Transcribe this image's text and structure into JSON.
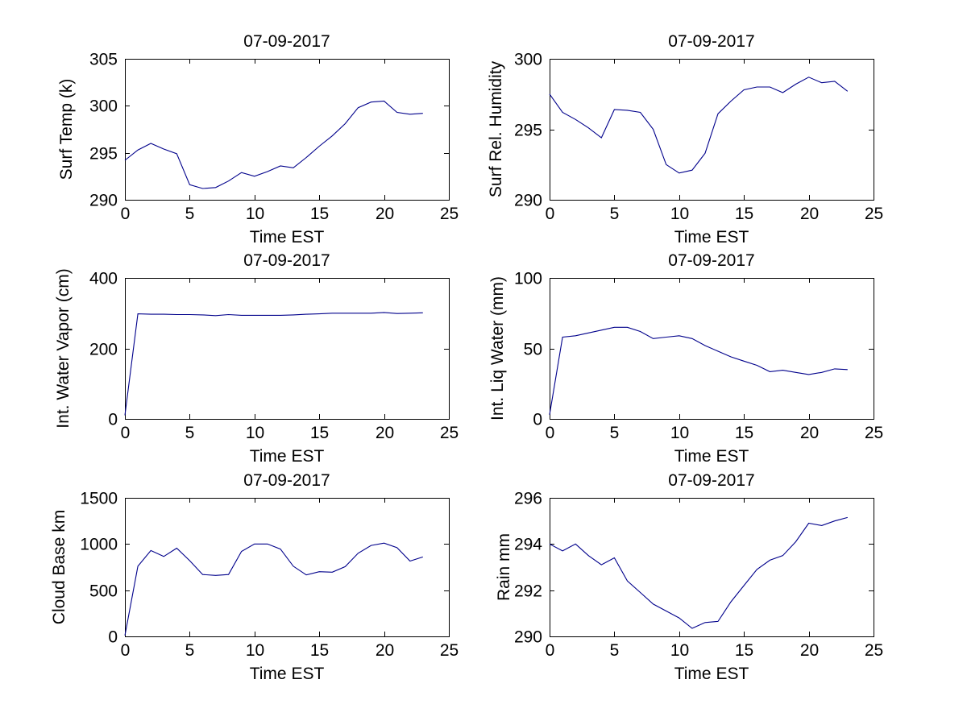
{
  "page": {
    "background": "#ffffff",
    "axis_color": "#000000",
    "line_color": "#00008B"
  },
  "chart_data": [
    {
      "type": "line",
      "title": "07-09-2017",
      "xlabel": "Time EST",
      "ylabel": "Surf Temp (k)",
      "xlim": [
        0,
        25
      ],
      "ylim": [
        290,
        305
      ],
      "xticks": [
        0,
        5,
        10,
        15,
        20,
        25
      ],
      "yticks": [
        290,
        295,
        300,
        305
      ],
      "grid": false,
      "legend": null,
      "line_color": "#00008B",
      "x": [
        0,
        1,
        2,
        3,
        4,
        5,
        6,
        7,
        8,
        9,
        10,
        11,
        12,
        13,
        14,
        15,
        16,
        17,
        18,
        19,
        20,
        21,
        22,
        23
      ],
      "y": [
        294.2,
        295.3,
        296.0,
        295.4,
        294.9,
        291.6,
        291.2,
        291.3,
        292.0,
        292.9,
        292.5,
        293.0,
        293.6,
        293.4,
        294.5,
        295.7,
        296.8,
        298.1,
        299.8,
        300.4,
        300.5,
        299.3,
        299.1,
        299.2
      ]
    },
    {
      "type": "line",
      "title": "07-09-2017",
      "xlabel": "Time EST",
      "ylabel": "Surf Rel. Humidity",
      "xlim": [
        0,
        25
      ],
      "ylim": [
        290,
        300
      ],
      "xticks": [
        0,
        5,
        10,
        15,
        20,
        25
      ],
      "yticks": [
        290,
        295,
        300
      ],
      "grid": false,
      "legend": null,
      "line_color": "#00008B",
      "x": [
        0,
        1,
        2,
        3,
        4,
        5,
        6,
        7,
        8,
        9,
        10,
        11,
        12,
        13,
        14,
        15,
        16,
        17,
        18,
        19,
        20,
        21,
        22,
        23
      ],
      "y": [
        297.5,
        296.2,
        295.7,
        295.1,
        294.4,
        296.4,
        296.35,
        296.2,
        295.0,
        292.5,
        291.9,
        292.1,
        293.3,
        296.1,
        297.0,
        297.8,
        298.0,
        298.0,
        297.6,
        298.2,
        298.7,
        298.3,
        298.4,
        297.7
      ]
    },
    {
      "type": "line",
      "title": "07-09-2017",
      "xlabel": "Time EST",
      "ylabel": "Int. Water Vapor (cm)",
      "xlim": [
        0,
        25
      ],
      "ylim": [
        0,
        400
      ],
      "xticks": [
        0,
        5,
        10,
        15,
        20,
        25
      ],
      "yticks": [
        0,
        200,
        400
      ],
      "grid": false,
      "legend": null,
      "line_color": "#00008B",
      "x": [
        0,
        1,
        2,
        3,
        4,
        5,
        6,
        7,
        8,
        9,
        10,
        11,
        12,
        13,
        14,
        15,
        16,
        17,
        18,
        19,
        20,
        21,
        22,
        23
      ],
      "y": [
        10,
        298,
        297,
        297,
        296,
        296,
        295,
        293,
        296,
        294,
        294,
        294,
        294,
        295,
        297,
        298,
        300,
        300,
        300,
        300,
        302,
        299,
        300,
        301
      ]
    },
    {
      "type": "line",
      "title": "07-09-2017",
      "xlabel": "Time EST",
      "ylabel": "Int. Liq Water (mm)",
      "xlim": [
        0,
        25
      ],
      "ylim": [
        0,
        100
      ],
      "xticks": [
        0,
        5,
        10,
        15,
        20,
        25
      ],
      "yticks": [
        0,
        50,
        100
      ],
      "grid": false,
      "legend": null,
      "line_color": "#00008B",
      "x": [
        0,
        1,
        2,
        3,
        4,
        5,
        6,
        7,
        8,
        9,
        10,
        11,
        12,
        13,
        14,
        15,
        16,
        17,
        18,
        19,
        20,
        21,
        22,
        23
      ],
      "y": [
        3,
        58,
        59,
        61,
        63,
        65,
        65,
        62,
        57,
        58,
        59,
        57,
        52,
        48,
        44,
        41,
        38,
        33.5,
        34.5,
        33,
        31.5,
        33,
        35.5,
        35
      ]
    },
    {
      "type": "line",
      "title": "07-09-2017",
      "xlabel": "Time EST",
      "ylabel": "Cloud Base km",
      "xlim": [
        0,
        25
      ],
      "ylim": [
        0,
        1500
      ],
      "xticks": [
        0,
        5,
        10,
        15,
        20,
        25
      ],
      "yticks": [
        0,
        500,
        1000,
        1500
      ],
      "grid": false,
      "legend": null,
      "line_color": "#00008B",
      "x": [
        0,
        1,
        2,
        3,
        4,
        5,
        6,
        7,
        8,
        9,
        10,
        11,
        12,
        13,
        14,
        15,
        16,
        17,
        18,
        19,
        20,
        21,
        22,
        23
      ],
      "y": [
        10,
        760,
        930,
        865,
        955,
        820,
        670,
        660,
        670,
        920,
        1000,
        1000,
        945,
        760,
        665,
        700,
        695,
        755,
        900,
        985,
        1010,
        960,
        815,
        860
      ]
    },
    {
      "type": "line",
      "title": "07-09-2017",
      "xlabel": "Time EST",
      "ylabel": "Rain mm",
      "xlim": [
        0,
        25
      ],
      "ylim": [
        290,
        296
      ],
      "xticks": [
        0,
        5,
        10,
        15,
        20,
        25
      ],
      "yticks": [
        290,
        292,
        294,
        296
      ],
      "grid": false,
      "legend": null,
      "line_color": "#00008B",
      "x": [
        0,
        1,
        2,
        3,
        4,
        5,
        6,
        7,
        8,
        9,
        10,
        11,
        12,
        13,
        14,
        15,
        16,
        17,
        18,
        19,
        20,
        21,
        22,
        23
      ],
      "y": [
        294.0,
        293.7,
        294.0,
        293.5,
        293.1,
        293.4,
        292.4,
        291.9,
        291.4,
        291.1,
        290.8,
        290.35,
        290.6,
        290.65,
        291.5,
        292.2,
        292.9,
        293.3,
        293.5,
        294.1,
        294.9,
        294.8,
        295.0,
        295.15
      ]
    }
  ]
}
